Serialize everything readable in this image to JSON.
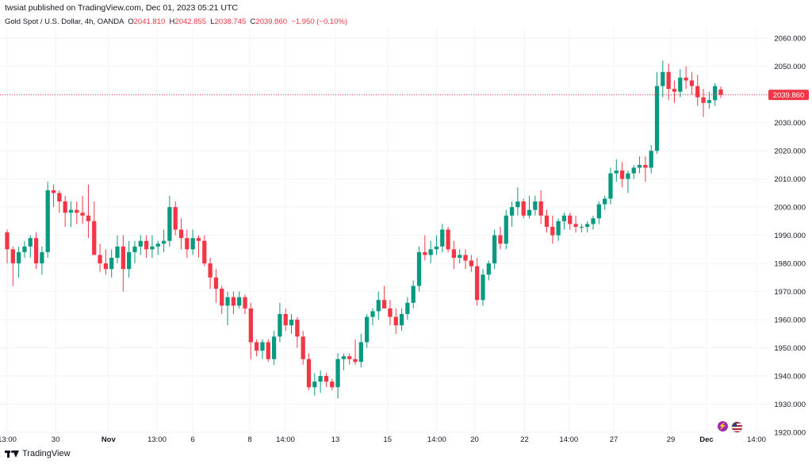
{
  "header": {
    "published_text": "twsiat published on TradingView.com, Dec 01, 2023 05:21 UTC"
  },
  "legend": {
    "symbol": "Gold Spot / U.S. Dollar, 4h, OANDA",
    "o_key": "O",
    "o_val": "2041.810",
    "h_key": "H",
    "h_val": "2042.855",
    "l_key": "L",
    "l_val": "2038.745",
    "c_key": "C",
    "c_val": "2039.860",
    "change": "−1.950 (−0.10%)"
  },
  "footer": {
    "brand": "TradingView"
  },
  "icons": [
    "lightning-icon",
    "us-flag-icon"
  ],
  "colors": {
    "up": "#089981",
    "down": "#f23645",
    "grid": "#f0f3fa",
    "price_line": "#f23645"
  },
  "chart_data": {
    "type": "candlestick",
    "title": "Gold Spot / U.S. Dollar, 4h, OANDA",
    "ylim": [
      1920,
      2064
    ],
    "y_ticks": [
      "2060.000",
      "2050.000",
      "2040.000",
      "2030.000",
      "2020.000",
      "2010.000",
      "2000.000",
      "1990.000",
      "1980.000",
      "1970.000",
      "1960.000",
      "1950.000",
      "1940.000",
      "1930.000",
      "1920.000"
    ],
    "x_ticks": [
      "13:00",
      "30",
      "Nov",
      "13:00",
      "6",
      "8",
      "14:00",
      "13",
      "15",
      "14:00",
      "20",
      "22",
      "14:00",
      "27",
      "29",
      "Dec",
      "14:00"
    ],
    "last_price_label": "2039.860",
    "last_price": 2039.86,
    "grid": true,
    "candles": [
      [
        1991,
        1992,
        1980,
        1985
      ],
      [
        1985,
        1986,
        1972,
        1980
      ],
      [
        1980,
        1986,
        1975,
        1984
      ],
      [
        1984,
        1988,
        1982,
        1986
      ],
      [
        1986,
        1990,
        1982,
        1989
      ],
      [
        1989,
        1991,
        1978,
        1980
      ],
      [
        1980,
        1986,
        1976,
        1984
      ],
      [
        1984,
        2009,
        1982,
        2006
      ],
      [
        2006,
        2008,
        2000,
        2005
      ],
      [
        2005,
        2006,
        1998,
        2002
      ],
      [
        2002,
        2004,
        1993,
        1998
      ],
      [
        1998,
        2002,
        1993,
        1999
      ],
      [
        1999,
        2002,
        1994,
        1998
      ],
      [
        1998,
        2004,
        1994,
        1997
      ],
      [
        1997,
        2008,
        1989,
        1995
      ],
      [
        1995,
        2002,
        1983,
        1983
      ],
      [
        1983,
        1987,
        1977,
        1980
      ],
      [
        1980,
        1985,
        1976,
        1978
      ],
      [
        1978,
        1985,
        1975,
        1982
      ],
      [
        1982,
        1990,
        1980,
        1986
      ],
      [
        1986,
        1990,
        1970,
        1978
      ],
      [
        1978,
        1988,
        1975,
        1984
      ],
      [
        1984,
        1988,
        1980,
        1986
      ],
      [
        1986,
        1990,
        1983,
        1988
      ],
      [
        1988,
        1990,
        1982,
        1985
      ],
      [
        1985,
        1990,
        1982,
        1986
      ],
      [
        1986,
        1988,
        1983,
        1987
      ],
      [
        1987,
        1992,
        1984,
        1988
      ],
      [
        1988,
        2004,
        1986,
        2000
      ],
      [
        2000,
        2002,
        1990,
        1992
      ],
      [
        1992,
        1996,
        1985,
        1989
      ],
      [
        1989,
        1992,
        1982,
        1985
      ],
      [
        1985,
        1992,
        1983,
        1989
      ],
      [
        1989,
        1990,
        1982,
        1988
      ],
      [
        1988,
        1990,
        1979,
        1980
      ],
      [
        1980,
        1982,
        1971,
        1975
      ],
      [
        1975,
        1978,
        1966,
        1971
      ],
      [
        1971,
        1972,
        1962,
        1965
      ],
      [
        1965,
        1970,
        1958,
        1968
      ],
      [
        1968,
        1970,
        1962,
        1965
      ],
      [
        1965,
        1970,
        1964,
        1968
      ],
      [
        1968,
        1969,
        1962,
        1964
      ],
      [
        1964,
        1966,
        1946,
        1952
      ],
      [
        1952,
        1953,
        1947,
        1949
      ],
      [
        1949,
        1953,
        1946,
        1952
      ],
      [
        1952,
        1953,
        1945,
        1946
      ],
      [
        1946,
        1956,
        1944,
        1954
      ],
      [
        1954,
        1966,
        1952,
        1962
      ],
      [
        1962,
        1964,
        1956,
        1958
      ],
      [
        1958,
        1962,
        1955,
        1960
      ],
      [
        1960,
        1961,
        1950,
        1954
      ],
      [
        1954,
        1956,
        1944,
        1946
      ],
      [
        1946,
        1948,
        1935,
        1936
      ],
      [
        1936,
        1941,
        1933,
        1938
      ],
      [
        1938,
        1942,
        1934,
        1940
      ],
      [
        1940,
        1941,
        1936,
        1938
      ],
      [
        1938,
        1939,
        1935,
        1936
      ],
      [
        1936,
        1948,
        1932,
        1946
      ],
      [
        1946,
        1948,
        1942,
        1947
      ],
      [
        1947,
        1948,
        1944,
        1946
      ],
      [
        1946,
        1953,
        1944,
        1945
      ],
      [
        1945,
        1955,
        1943,
        1952
      ],
      [
        1952,
        1962,
        1950,
        1961
      ],
      [
        1961,
        1964,
        1958,
        1963
      ],
      [
        1963,
        1970,
        1960,
        1967
      ],
      [
        1967,
        1972,
        1965,
        1964
      ],
      [
        1964,
        1967,
        1958,
        1961
      ],
      [
        1961,
        1964,
        1955,
        1958
      ],
      [
        1958,
        1964,
        1956,
        1962
      ],
      [
        1962,
        1968,
        1960,
        1966
      ],
      [
        1966,
        1974,
        1964,
        1972
      ],
      [
        1972,
        1986,
        1970,
        1984
      ],
      [
        1984,
        1990,
        1981,
        1983
      ],
      [
        1983,
        1988,
        1980,
        1985
      ],
      [
        1985,
        1990,
        1983,
        1986
      ],
      [
        1986,
        1994,
        1984,
        1992
      ],
      [
        1992,
        1993,
        1984,
        1985
      ],
      [
        1985,
        1988,
        1978,
        1982
      ],
      [
        1982,
        1985,
        1980,
        1983
      ],
      [
        1983,
        1985,
        1978,
        1981
      ],
      [
        1981,
        1983,
        1977,
        1979
      ],
      [
        1979,
        1982,
        1965,
        1967
      ],
      [
        1967,
        1978,
        1965,
        1976
      ],
      [
        1976,
        1981,
        1974,
        1980
      ],
      [
        1980,
        1992,
        1978,
        1990
      ],
      [
        1990,
        1993,
        1985,
        1987
      ],
      [
        1987,
        1999,
        1985,
        1997
      ],
      [
        1997,
        2002,
        1993,
        2000
      ],
      [
        2000,
        2007,
        1997,
        2002
      ],
      [
        2002,
        2003,
        1996,
        1997
      ],
      [
        1997,
        2004,
        1996,
        1999
      ],
      [
        1999,
        2004,
        1997,
        2002
      ],
      [
        2002,
        2006,
        1994,
        1997
      ],
      [
        1997,
        1999,
        1991,
        1993
      ],
      [
        1993,
        1997,
        1987,
        1990
      ],
      [
        1990,
        1996,
        1988,
        1995
      ],
      [
        1995,
        1998,
        1992,
        1997
      ],
      [
        1997,
        1998,
        1992,
        1994
      ],
      [
        1994,
        1997,
        1991,
        1993
      ],
      [
        1993,
        1994,
        1991,
        1993
      ],
      [
        1993,
        1995,
        1991,
        1994
      ],
      [
        1994,
        1997,
        1992,
        1996
      ],
      [
        1996,
        2002,
        1994,
        2001
      ],
      [
        2001,
        2004,
        1999,
        2003
      ],
      [
        2003,
        2014,
        2001,
        2012
      ],
      [
        2012,
        2017,
        2009,
        2013
      ],
      [
        2013,
        2016,
        2007,
        2010
      ],
      [
        2010,
        2013,
        2005,
        2012
      ],
      [
        2012,
        2015,
        2010,
        2014
      ],
      [
        2014,
        2018,
        2012,
        2015
      ],
      [
        2015,
        2018,
        2009,
        2014
      ],
      [
        2014,
        2022,
        2012,
        2020
      ],
      [
        2020,
        2048,
        2019,
        2043
      ],
      [
        2043,
        2052,
        2039,
        2048
      ],
      [
        2048,
        2051,
        2038,
        2042
      ],
      [
        2042,
        2045,
        2037,
        2041
      ],
      [
        2041,
        2049,
        2039,
        2046
      ],
      [
        2046,
        2050,
        2042,
        2045
      ],
      [
        2045,
        2048,
        2040,
        2043
      ],
      [
        2043,
        2047,
        2036,
        2039
      ],
      [
        2039,
        2042,
        2032,
        2037
      ],
      [
        2037,
        2041,
        2035,
        2038
      ],
      [
        2038,
        2044,
        2036,
        2043
      ],
      [
        2041.81,
        2042.855,
        2038.745,
        2039.86
      ]
    ]
  }
}
